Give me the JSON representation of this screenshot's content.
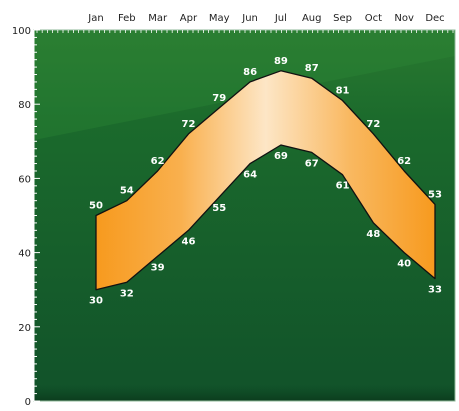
{
  "chart_data": {
    "type": "area",
    "title": "",
    "xlabel": "",
    "ylabel": "",
    "categories": [
      "Jan",
      "Feb",
      "Mar",
      "Apr",
      "May",
      "Jun",
      "Jul",
      "Aug",
      "Sep",
      "Oct",
      "Nov",
      "Dec"
    ],
    "series": [
      {
        "values": [
          50,
          54,
          62,
          72,
          79,
          86,
          89,
          87,
          81,
          72,
          62,
          53
        ]
      },
      {
        "values": [
          30,
          32,
          39,
          46,
          55,
          64,
          69,
          67,
          61,
          48,
          40,
          33
        ]
      }
    ],
    "ylim": [
      0,
      100
    ],
    "y_ticks": [
      0,
      20,
      40,
      60,
      80,
      100
    ],
    "x_axis_position": "top",
    "grid": false,
    "colors": {
      "plot_background": "#14572a",
      "plot_background_light": "#2a7a30",
      "band_edge": "#f79a1e",
      "band_center": "#fde6c6",
      "outline": "#111111"
    }
  }
}
